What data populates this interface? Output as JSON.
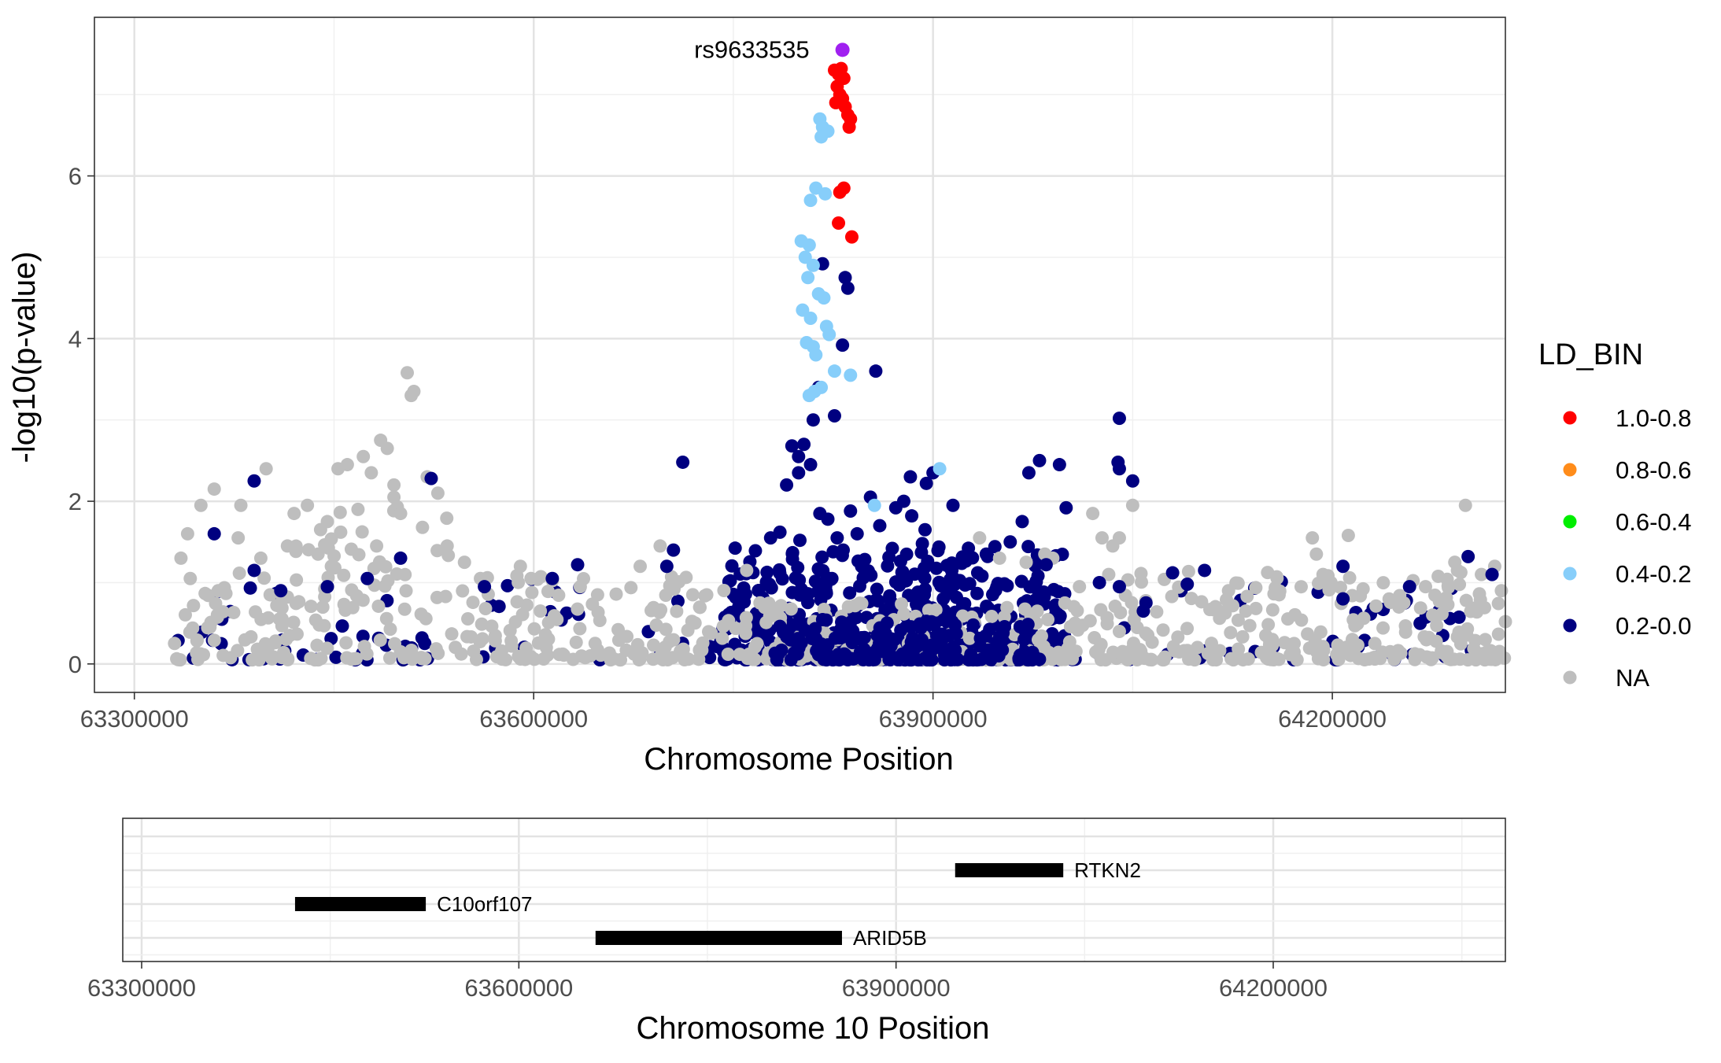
{
  "chart_data": [
    {
      "type": "scatter",
      "title": "",
      "xlabel": "Chromosome Position",
      "ylabel": "-log10(p-value)",
      "xlim": [
        63270000,
        64330000
      ],
      "ylim": [
        -0.35,
        7.95
      ],
      "x_ticks": [
        63300000,
        63600000,
        63900000,
        64200000
      ],
      "x_tick_labels": [
        "63300000",
        "63600000",
        "63900000",
        "64200000"
      ],
      "y_ticks": [
        0,
        2,
        4,
        6
      ],
      "y_tick_labels": [
        "0",
        "2",
        "4",
        "6"
      ],
      "grid": true,
      "legend": {
        "title": "LD_BIN",
        "placement": "right",
        "entries": [
          {
            "label": "1.0-0.8",
            "color": "#ff0000"
          },
          {
            "label": "0.8-0.6",
            "color": "#ff8c1a"
          },
          {
            "label": "0.6-0.4",
            "color": "#00ee00"
          },
          {
            "label": "0.4-0.2",
            "color": "#87cefa"
          },
          {
            "label": "0.2-0.0",
            "color": "#000080"
          },
          {
            "label": "NA",
            "color": "#bebebe"
          }
        ]
      },
      "lead_snp": {
        "label": "rs9633535",
        "x": 63832000,
        "y": 7.55,
        "color": "#a020f0"
      },
      "series": [
        {
          "key": "1.0-0.8",
          "color": "#ff0000",
          "points": [
            [
              63826000,
              7.3
            ],
            [
              63829000,
              7.25
            ],
            [
              63831000,
              7.32
            ],
            [
              63833000,
              7.2
            ],
            [
              63828000,
              7.1
            ],
            [
              63830000,
              7.0
            ],
            [
              63832000,
              6.95
            ],
            [
              63827000,
              6.9
            ],
            [
              63834000,
              6.85
            ],
            [
              63836000,
              6.75
            ],
            [
              63838000,
              6.7
            ],
            [
              63837000,
              6.6
            ],
            [
              63833000,
              5.85
            ],
            [
              63830000,
              5.8
            ],
            [
              63829000,
              5.42
            ],
            [
              63839000,
              5.25
            ]
          ]
        },
        {
          "key": "0.4-0.2",
          "color": "#87cefa",
          "points": [
            [
              63815000,
              6.7
            ],
            [
              63817000,
              6.6
            ],
            [
              63821000,
              6.55
            ],
            [
              63816000,
              6.48
            ],
            [
              63812000,
              5.85
            ],
            [
              63819000,
              5.78
            ],
            [
              63808000,
              5.7
            ],
            [
              63801000,
              5.2
            ],
            [
              63807000,
              5.15
            ],
            [
              63804000,
              5.0
            ],
            [
              63810000,
              4.9
            ],
            [
              63806000,
              4.75
            ],
            [
              63814000,
              4.55
            ],
            [
              63818000,
              4.5
            ],
            [
              63802000,
              4.35
            ],
            [
              63808000,
              4.25
            ],
            [
              63820000,
              4.15
            ],
            [
              63822000,
              4.05
            ],
            [
              63805000,
              3.95
            ],
            [
              63810000,
              3.9
            ],
            [
              63812000,
              3.8
            ],
            [
              63826000,
              3.6
            ],
            [
              63838000,
              3.55
            ],
            [
              63816000,
              3.4
            ],
            [
              63811000,
              3.35
            ],
            [
              63807000,
              3.3
            ],
            [
              63905000,
              2.4
            ],
            [
              63856000,
              1.95
            ]
          ]
        },
        {
          "key": "0.2-0.0",
          "color": "#000080",
          "points": [
            [
              63817000,
              4.92
            ],
            [
              63834000,
              4.75
            ],
            [
              63836000,
              4.62
            ],
            [
              63832000,
              3.92
            ],
            [
              63857000,
              3.6
            ],
            [
              63814000,
              3.4
            ],
            [
              63810000,
              3.0
            ],
            [
              63826000,
              3.05
            ],
            [
              63803000,
              2.7
            ],
            [
              63794000,
              2.68
            ],
            [
              63808000,
              2.45
            ],
            [
              63799000,
              2.55
            ],
            [
              63799000,
              2.35
            ],
            [
              63790000,
              2.2
            ],
            [
              63712000,
              2.48
            ],
            [
              63390000,
              2.25
            ],
            [
              63523000,
              2.28
            ],
            [
              64040000,
              3.02
            ],
            [
              64039000,
              2.48
            ],
            [
              64040000,
              2.4
            ],
            [
              64050000,
              2.25
            ],
            [
              63980000,
              2.5
            ],
            [
              63995000,
              2.45
            ],
            [
              63972000,
              2.35
            ],
            [
              63900000,
              2.35
            ],
            [
              63883000,
              2.3
            ],
            [
              63895000,
              2.22
            ],
            [
              63878000,
              2.0
            ],
            [
              63853000,
              2.05
            ],
            [
              63872000,
              1.92
            ],
            [
              63838000,
              1.88
            ],
            [
              63815000,
              1.85
            ],
            [
              63821000,
              1.78
            ],
            [
              63860000,
              1.7
            ],
            [
              63884000,
              1.82
            ],
            [
              63915000,
              1.95
            ],
            [
              63967000,
              1.75
            ],
            [
              64000000,
              1.92
            ],
            [
              63828000,
              1.55
            ],
            [
              63800000,
              1.52
            ],
            [
              63843000,
              1.6
            ],
            [
              63892000,
              1.48
            ],
            [
              63894000,
              1.65
            ],
            [
              63778000,
              1.55
            ],
            [
              63785000,
              1.62
            ],
            [
              63705000,
              1.4
            ],
            [
              63700000,
              1.2
            ],
            [
              63633000,
              1.22
            ],
            [
              63614000,
              1.05
            ],
            [
              63563000,
              0.95
            ],
            [
              63500000,
              1.3
            ],
            [
              63475000,
              1.05
            ],
            [
              63445000,
              0.95
            ],
            [
              63410000,
              0.9
            ],
            [
              63360000,
              1.6
            ],
            [
              63390000,
              1.15
            ],
            [
              64104000,
              1.15
            ],
            [
              64091000,
              0.98
            ],
            [
              64208000,
              1.2
            ],
            [
              64258000,
              0.95
            ],
            [
              64208000,
              0.8
            ],
            [
              64302000,
              1.32
            ],
            [
              64320000,
              1.1
            ],
            [
              64060000,
              0.75
            ],
            [
              64080000,
              1.12
            ],
            [
              63958000,
              1.5
            ],
            [
              63940000,
              1.35
            ],
            [
              63985000,
              1.22
            ],
            [
              64025000,
              1.0
            ],
            [
              64040000,
              0.95
            ],
            [
              64058000,
              0.65
            ]
          ]
        },
        {
          "key": "NA",
          "color": "#bebebe",
          "points": [
            [
              63505000,
              3.58
            ],
            [
              63510000,
              3.35
            ],
            [
              63508000,
              3.3
            ],
            [
              63485000,
              2.75
            ],
            [
              63490000,
              2.65
            ],
            [
              63472000,
              2.55
            ],
            [
              63478000,
              2.35
            ],
            [
              63460000,
              2.45
            ],
            [
              63453000,
              2.4
            ],
            [
              63495000,
              2.2
            ],
            [
              63520000,
              2.3
            ],
            [
              63495000,
              2.05
            ],
            [
              63500000,
              1.85
            ],
            [
              63528000,
              2.1
            ],
            [
              63399000,
              2.4
            ],
            [
              63360000,
              2.15
            ],
            [
              63350000,
              1.95
            ],
            [
              63340000,
              1.6
            ],
            [
              63335000,
              1.3
            ],
            [
              63342000,
              1.05
            ],
            [
              63380000,
              1.95
            ],
            [
              63378000,
              1.55
            ],
            [
              63420000,
              1.85
            ],
            [
              63430000,
              1.95
            ],
            [
              63445000,
              1.75
            ],
            [
              63455000,
              1.62
            ],
            [
              63468000,
              1.9
            ],
            [
              63482000,
              1.45
            ],
            [
              63438000,
              1.35
            ],
            [
              63415000,
              1.45
            ],
            [
              63402000,
              0.85
            ],
            [
              63363000,
              0.9
            ],
            [
              63395000,
              1.3
            ],
            [
              63448000,
              1.2
            ],
            [
              63535000,
              1.45
            ],
            [
              63548000,
              1.25
            ],
            [
              63560000,
              1.05
            ],
            [
              63590000,
              1.2
            ],
            [
              63598000,
              1.05
            ],
            [
              63605000,
              0.65
            ],
            [
              63635000,
              0.95
            ],
            [
              63648000,
              0.85
            ],
            [
              63680000,
              1.2
            ],
            [
              63695000,
              1.45
            ],
            [
              63730000,
              0.85
            ],
            [
              63760000,
              1.15
            ],
            [
              63770000,
              0.75
            ],
            [
              63935000,
              1.55
            ],
            [
              63950000,
              1.3
            ],
            [
              63970000,
              1.25
            ],
            [
              63984000,
              1.35
            ],
            [
              63990000,
              1.3
            ],
            [
              64020000,
              1.85
            ],
            [
              64027000,
              1.55
            ],
            [
              64040000,
              1.55
            ],
            [
              64035000,
              1.45
            ],
            [
              64050000,
              1.95
            ],
            [
              64032000,
              1.1
            ],
            [
              64010000,
              0.95
            ],
            [
              64122000,
              0.9
            ],
            [
              64135000,
              0.65
            ],
            [
              64160000,
              0.85
            ],
            [
              64185000,
              1.55
            ],
            [
              64188000,
              1.35
            ],
            [
              64193000,
              1.1
            ],
            [
              64199000,
              1.0
            ],
            [
              64212000,
              1.58
            ],
            [
              64250000,
              0.7
            ],
            [
              64270000,
              0.95
            ],
            [
              64292000,
              1.25
            ],
            [
              64294000,
              1.15
            ],
            [
              64300000,
              1.95
            ],
            [
              64312000,
              1.1
            ],
            [
              64322000,
              1.2
            ],
            [
              64327000,
              0.9
            ],
            [
              64330000,
              0.52
            ],
            [
              64215000,
              0.3
            ],
            [
              64150000,
              0.35
            ],
            [
              64040000,
              0.4
            ]
          ]
        }
      ]
    },
    {
      "type": "gene-track",
      "xlabel": "Chromosome 10 Position",
      "xlim": [
        63300000,
        64330000
      ],
      "x_ticks": [
        63300000,
        63600000,
        63900000,
        64200000
      ],
      "x_tick_labels": [
        "63300000",
        "63600000",
        "63900000",
        "64200000"
      ],
      "genes": [
        {
          "name": "RTKN2",
          "start": 63947000,
          "end": 64033000,
          "row": 3
        },
        {
          "name": "C10orf107",
          "start": 63422000,
          "end": 63526000,
          "row": 2
        },
        {
          "name": "ARID5B",
          "start": 63661000,
          "end": 63857000,
          "row": 1
        }
      ]
    }
  ]
}
